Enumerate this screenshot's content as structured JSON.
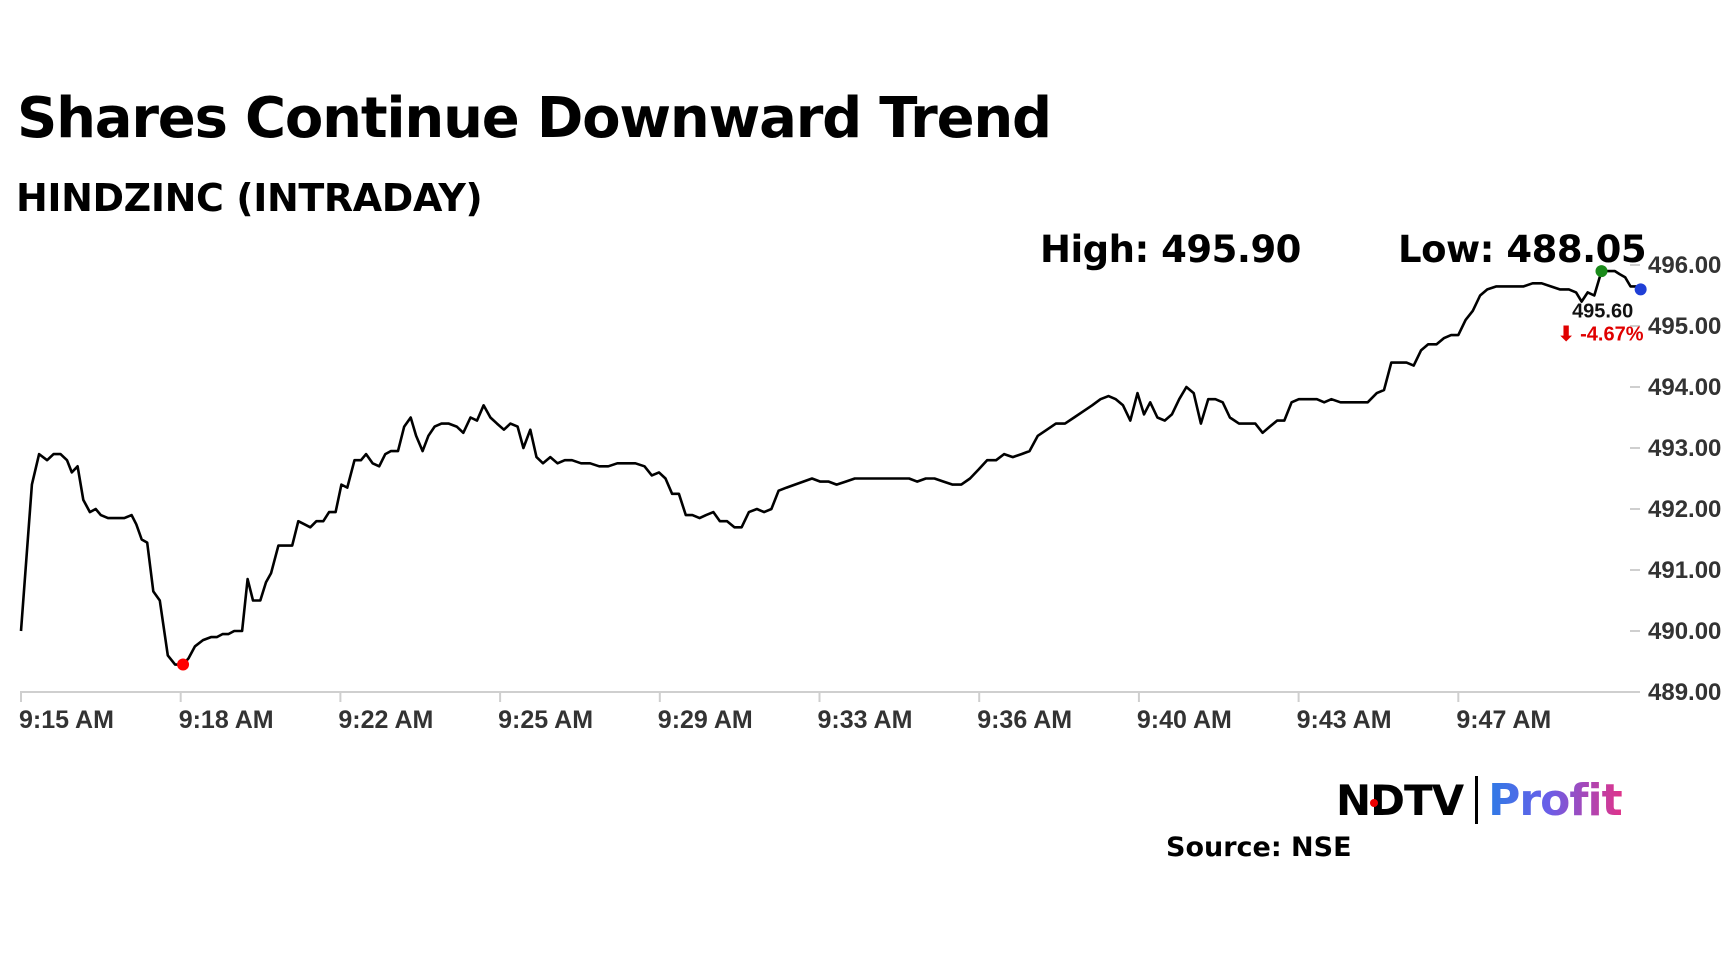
{
  "title": "Shares Continue Downward Trend",
  "subtitle": "HINDZINC (INTRADAY)",
  "stats": {
    "high": "High: 495.90",
    "low": "Low: 488.05"
  },
  "last": {
    "value": "495.60",
    "change": "⬇ -4.67%"
  },
  "brand": {
    "ndtv": "NDTV",
    "profit": "Profit"
  },
  "source": "Source: NSE",
  "colors": {
    "line": "#000000",
    "low_marker": "#ff0000",
    "high_marker": "#1a8a1a",
    "last_marker": "#1f3fd6",
    "change": "#e00000"
  },
  "chart_data": {
    "type": "line",
    "title": "Shares Continue Downward Trend",
    "subtitle": "HINDZINC (INTRADAY)",
    "xlabel": "",
    "ylabel": "",
    "ylim": [
      489.0,
      496.0
    ],
    "yticks": [
      "496.00",
      "495.00",
      "494.00",
      "493.00",
      "492.00",
      "491.00",
      "490.00",
      "489.00"
    ],
    "xticks": [
      "9:15 AM",
      "9:18 AM",
      "9:22 AM",
      "9:25 AM",
      "9:29 AM",
      "9:33 AM",
      "9:36 AM",
      "9:40 AM",
      "9:43 AM",
      "9:47 AM"
    ],
    "grid": false,
    "x_range_min": [
      0,
      39.65
    ],
    "series": [
      {
        "points": [
          [
            0.0,
            490.0
          ],
          [
            0.3,
            492.4
          ],
          [
            0.5,
            492.9
          ],
          [
            0.72,
            492.8
          ],
          [
            0.9,
            492.9
          ],
          [
            1.09,
            492.9
          ],
          [
            1.27,
            492.8
          ],
          [
            1.4,
            492.6
          ],
          [
            1.56,
            492.7
          ],
          [
            1.72,
            492.15
          ],
          [
            1.9,
            491.95
          ],
          [
            2.06,
            492.0
          ],
          [
            2.2,
            491.9
          ],
          [
            2.4,
            491.85
          ],
          [
            2.61,
            491.85
          ],
          [
            2.85,
            491.85
          ],
          [
            3.05,
            491.9
          ],
          [
            3.18,
            491.75
          ],
          [
            3.33,
            491.5
          ],
          [
            3.48,
            491.45
          ],
          [
            3.65,
            490.65
          ],
          [
            3.83,
            490.5
          ],
          [
            4.05,
            489.6
          ],
          [
            4.25,
            489.45
          ],
          [
            4.47,
            489.45
          ],
          [
            4.62,
            489.55
          ],
          [
            4.8,
            489.75
          ],
          [
            5.02,
            489.85
          ],
          [
            5.24,
            489.9
          ],
          [
            5.4,
            489.9
          ],
          [
            5.56,
            489.95
          ],
          [
            5.72,
            489.95
          ],
          [
            5.88,
            490.0
          ],
          [
            6.1,
            490.0
          ],
          [
            6.25,
            490.85
          ],
          [
            6.4,
            490.5
          ],
          [
            6.6,
            490.5
          ],
          [
            6.76,
            490.8
          ],
          [
            6.9,
            490.95
          ],
          [
            7.1,
            491.4
          ],
          [
            7.28,
            491.4
          ],
          [
            7.48,
            491.4
          ],
          [
            7.65,
            491.8
          ],
          [
            7.82,
            491.75
          ],
          [
            7.98,
            491.7
          ],
          [
            8.15,
            491.8
          ],
          [
            8.34,
            491.8
          ],
          [
            8.5,
            491.95
          ],
          [
            8.68,
            491.95
          ],
          [
            8.84,
            492.4
          ],
          [
            9.0,
            492.35
          ],
          [
            9.2,
            492.8
          ],
          [
            9.38,
            492.8
          ],
          [
            9.52,
            492.9
          ],
          [
            9.7,
            492.75
          ],
          [
            9.88,
            492.7
          ],
          [
            10.05,
            492.9
          ],
          [
            10.2,
            492.95
          ],
          [
            10.4,
            492.95
          ],
          [
            10.57,
            493.35
          ],
          [
            10.75,
            493.5
          ],
          [
            10.9,
            493.2
          ],
          [
            11.08,
            492.95
          ],
          [
            11.24,
            493.2
          ],
          [
            11.41,
            493.35
          ],
          [
            11.6,
            493.4
          ],
          [
            11.8,
            493.4
          ],
          [
            12.02,
            493.35
          ],
          [
            12.2,
            493.25
          ],
          [
            12.4,
            493.5
          ],
          [
            12.58,
            493.45
          ],
          [
            12.76,
            493.7
          ],
          [
            12.95,
            493.5
          ],
          [
            13.13,
            493.4
          ],
          [
            13.32,
            493.3
          ],
          [
            13.5,
            493.4
          ],
          [
            13.7,
            493.35
          ],
          [
            13.86,
            493.0
          ],
          [
            14.05,
            493.3
          ],
          [
            14.22,
            492.85
          ],
          [
            14.4,
            492.75
          ],
          [
            14.6,
            492.85
          ],
          [
            14.8,
            492.75
          ],
          [
            15.0,
            492.8
          ],
          [
            15.2,
            492.8
          ],
          [
            15.45,
            492.75
          ],
          [
            15.7,
            492.75
          ],
          [
            15.95,
            492.7
          ],
          [
            16.2,
            492.7
          ],
          [
            16.45,
            492.75
          ],
          [
            16.7,
            492.75
          ],
          [
            16.95,
            492.75
          ],
          [
            17.2,
            492.7
          ],
          [
            17.4,
            492.55
          ],
          [
            17.6,
            492.6
          ],
          [
            17.78,
            492.5
          ],
          [
            17.96,
            492.25
          ],
          [
            18.15,
            492.25
          ],
          [
            18.34,
            491.9
          ],
          [
            18.52,
            491.9
          ],
          [
            18.72,
            491.85
          ],
          [
            18.9,
            491.9
          ],
          [
            19.1,
            491.95
          ],
          [
            19.28,
            491.8
          ],
          [
            19.48,
            491.8
          ],
          [
            19.68,
            491.7
          ],
          [
            19.88,
            491.7
          ],
          [
            20.08,
            491.95
          ],
          [
            20.3,
            492.0
          ],
          [
            20.5,
            491.95
          ],
          [
            20.7,
            492.0
          ],
          [
            20.9,
            492.3
          ],
          [
            21.12,
            492.35
          ],
          [
            21.35,
            492.4
          ],
          [
            21.58,
            492.45
          ],
          [
            21.82,
            492.5
          ],
          [
            22.05,
            492.45
          ],
          [
            22.28,
            492.45
          ],
          [
            22.5,
            492.4
          ],
          [
            22.75,
            492.45
          ],
          [
            23.0,
            492.5
          ],
          [
            23.25,
            492.5
          ],
          [
            23.5,
            492.5
          ],
          [
            23.75,
            492.5
          ],
          [
            24.0,
            492.5
          ],
          [
            24.25,
            492.5
          ],
          [
            24.5,
            492.5
          ],
          [
            24.72,
            492.45
          ],
          [
            24.96,
            492.5
          ],
          [
            25.2,
            492.5
          ],
          [
            25.45,
            492.45
          ],
          [
            25.7,
            492.4
          ],
          [
            25.94,
            492.4
          ],
          [
            26.18,
            492.5
          ],
          [
            26.42,
            492.65
          ],
          [
            26.65,
            492.8
          ],
          [
            26.9,
            492.8
          ],
          [
            27.12,
            492.9
          ],
          [
            27.36,
            492.85
          ],
          [
            27.6,
            492.9
          ],
          [
            27.82,
            492.95
          ],
          [
            28.05,
            493.2
          ],
          [
            28.3,
            493.3
          ],
          [
            28.55,
            493.4
          ],
          [
            28.8,
            493.4
          ],
          [
            29.05,
            493.5
          ],
          [
            29.3,
            493.6
          ],
          [
            29.55,
            493.7
          ],
          [
            29.78,
            493.8
          ],
          [
            30.0,
            493.85
          ],
          [
            30.2,
            493.8
          ],
          [
            30.4,
            493.7
          ],
          [
            30.6,
            493.45
          ],
          [
            30.8,
            493.9
          ],
          [
            30.98,
            493.55
          ],
          [
            31.15,
            493.75
          ],
          [
            31.35,
            493.5
          ],
          [
            31.55,
            493.45
          ],
          [
            31.75,
            493.55
          ],
          [
            31.95,
            493.8
          ],
          [
            32.15,
            494.0
          ],
          [
            32.35,
            493.9
          ],
          [
            32.55,
            493.4
          ],
          [
            32.75,
            493.8
          ],
          [
            32.95,
            493.8
          ],
          [
            33.15,
            493.75
          ],
          [
            33.35,
            493.5
          ],
          [
            33.6,
            493.4
          ],
          [
            33.85,
            493.4
          ],
          [
            34.05,
            493.4
          ],
          [
            34.25,
            493.25
          ],
          [
            34.45,
            493.35
          ],
          [
            34.65,
            493.45
          ],
          [
            34.85,
            493.45
          ],
          [
            35.05,
            493.75
          ],
          [
            35.25,
            493.8
          ],
          [
            35.5,
            493.8
          ],
          [
            35.75,
            493.8
          ],
          [
            35.95,
            493.75
          ],
          [
            36.15,
            493.8
          ],
          [
            36.4,
            493.75
          ],
          [
            36.65,
            493.75
          ],
          [
            36.9,
            493.75
          ],
          [
            37.15,
            493.75
          ],
          [
            37.4,
            493.9
          ],
          [
            37.6,
            493.95
          ],
          [
            37.8,
            494.4
          ],
          [
            38.02,
            494.4
          ],
          [
            38.22,
            494.4
          ],
          [
            38.42,
            494.35
          ],
          [
            38.62,
            494.6
          ],
          [
            38.82,
            494.7
          ],
          [
            39.05,
            494.7
          ],
          [
            39.25,
            494.8
          ],
          [
            39.45,
            494.85
          ],
          [
            39.65,
            494.85
          ],
          [
            39.85,
            495.1
          ],
          [
            40.05,
            495.25
          ],
          [
            40.25,
            495.5
          ],
          [
            40.45,
            495.6
          ],
          [
            40.7,
            495.65
          ],
          [
            40.95,
            495.65
          ],
          [
            41.2,
            495.65
          ],
          [
            41.45,
            495.65
          ],
          [
            41.7,
            495.7
          ],
          [
            41.95,
            495.7
          ],
          [
            42.2,
            495.65
          ],
          [
            42.45,
            495.6
          ],
          [
            42.7,
            495.6
          ],
          [
            42.9,
            495.55
          ],
          [
            43.05,
            495.4
          ],
          [
            43.22,
            495.55
          ],
          [
            43.4,
            495.5
          ],
          [
            43.6,
            495.9
          ],
          [
            43.8,
            495.9
          ],
          [
            43.97,
            495.9
          ],
          [
            44.1,
            495.85
          ],
          [
            44.25,
            495.8
          ],
          [
            44.4,
            495.65
          ],
          [
            44.55,
            495.65
          ],
          [
            44.68,
            495.6
          ]
        ]
      }
    ],
    "markers": {
      "low": [
        4.47,
        489.45
      ],
      "high": [
        43.6,
        495.9
      ],
      "last": [
        44.68,
        495.6
      ]
    }
  }
}
